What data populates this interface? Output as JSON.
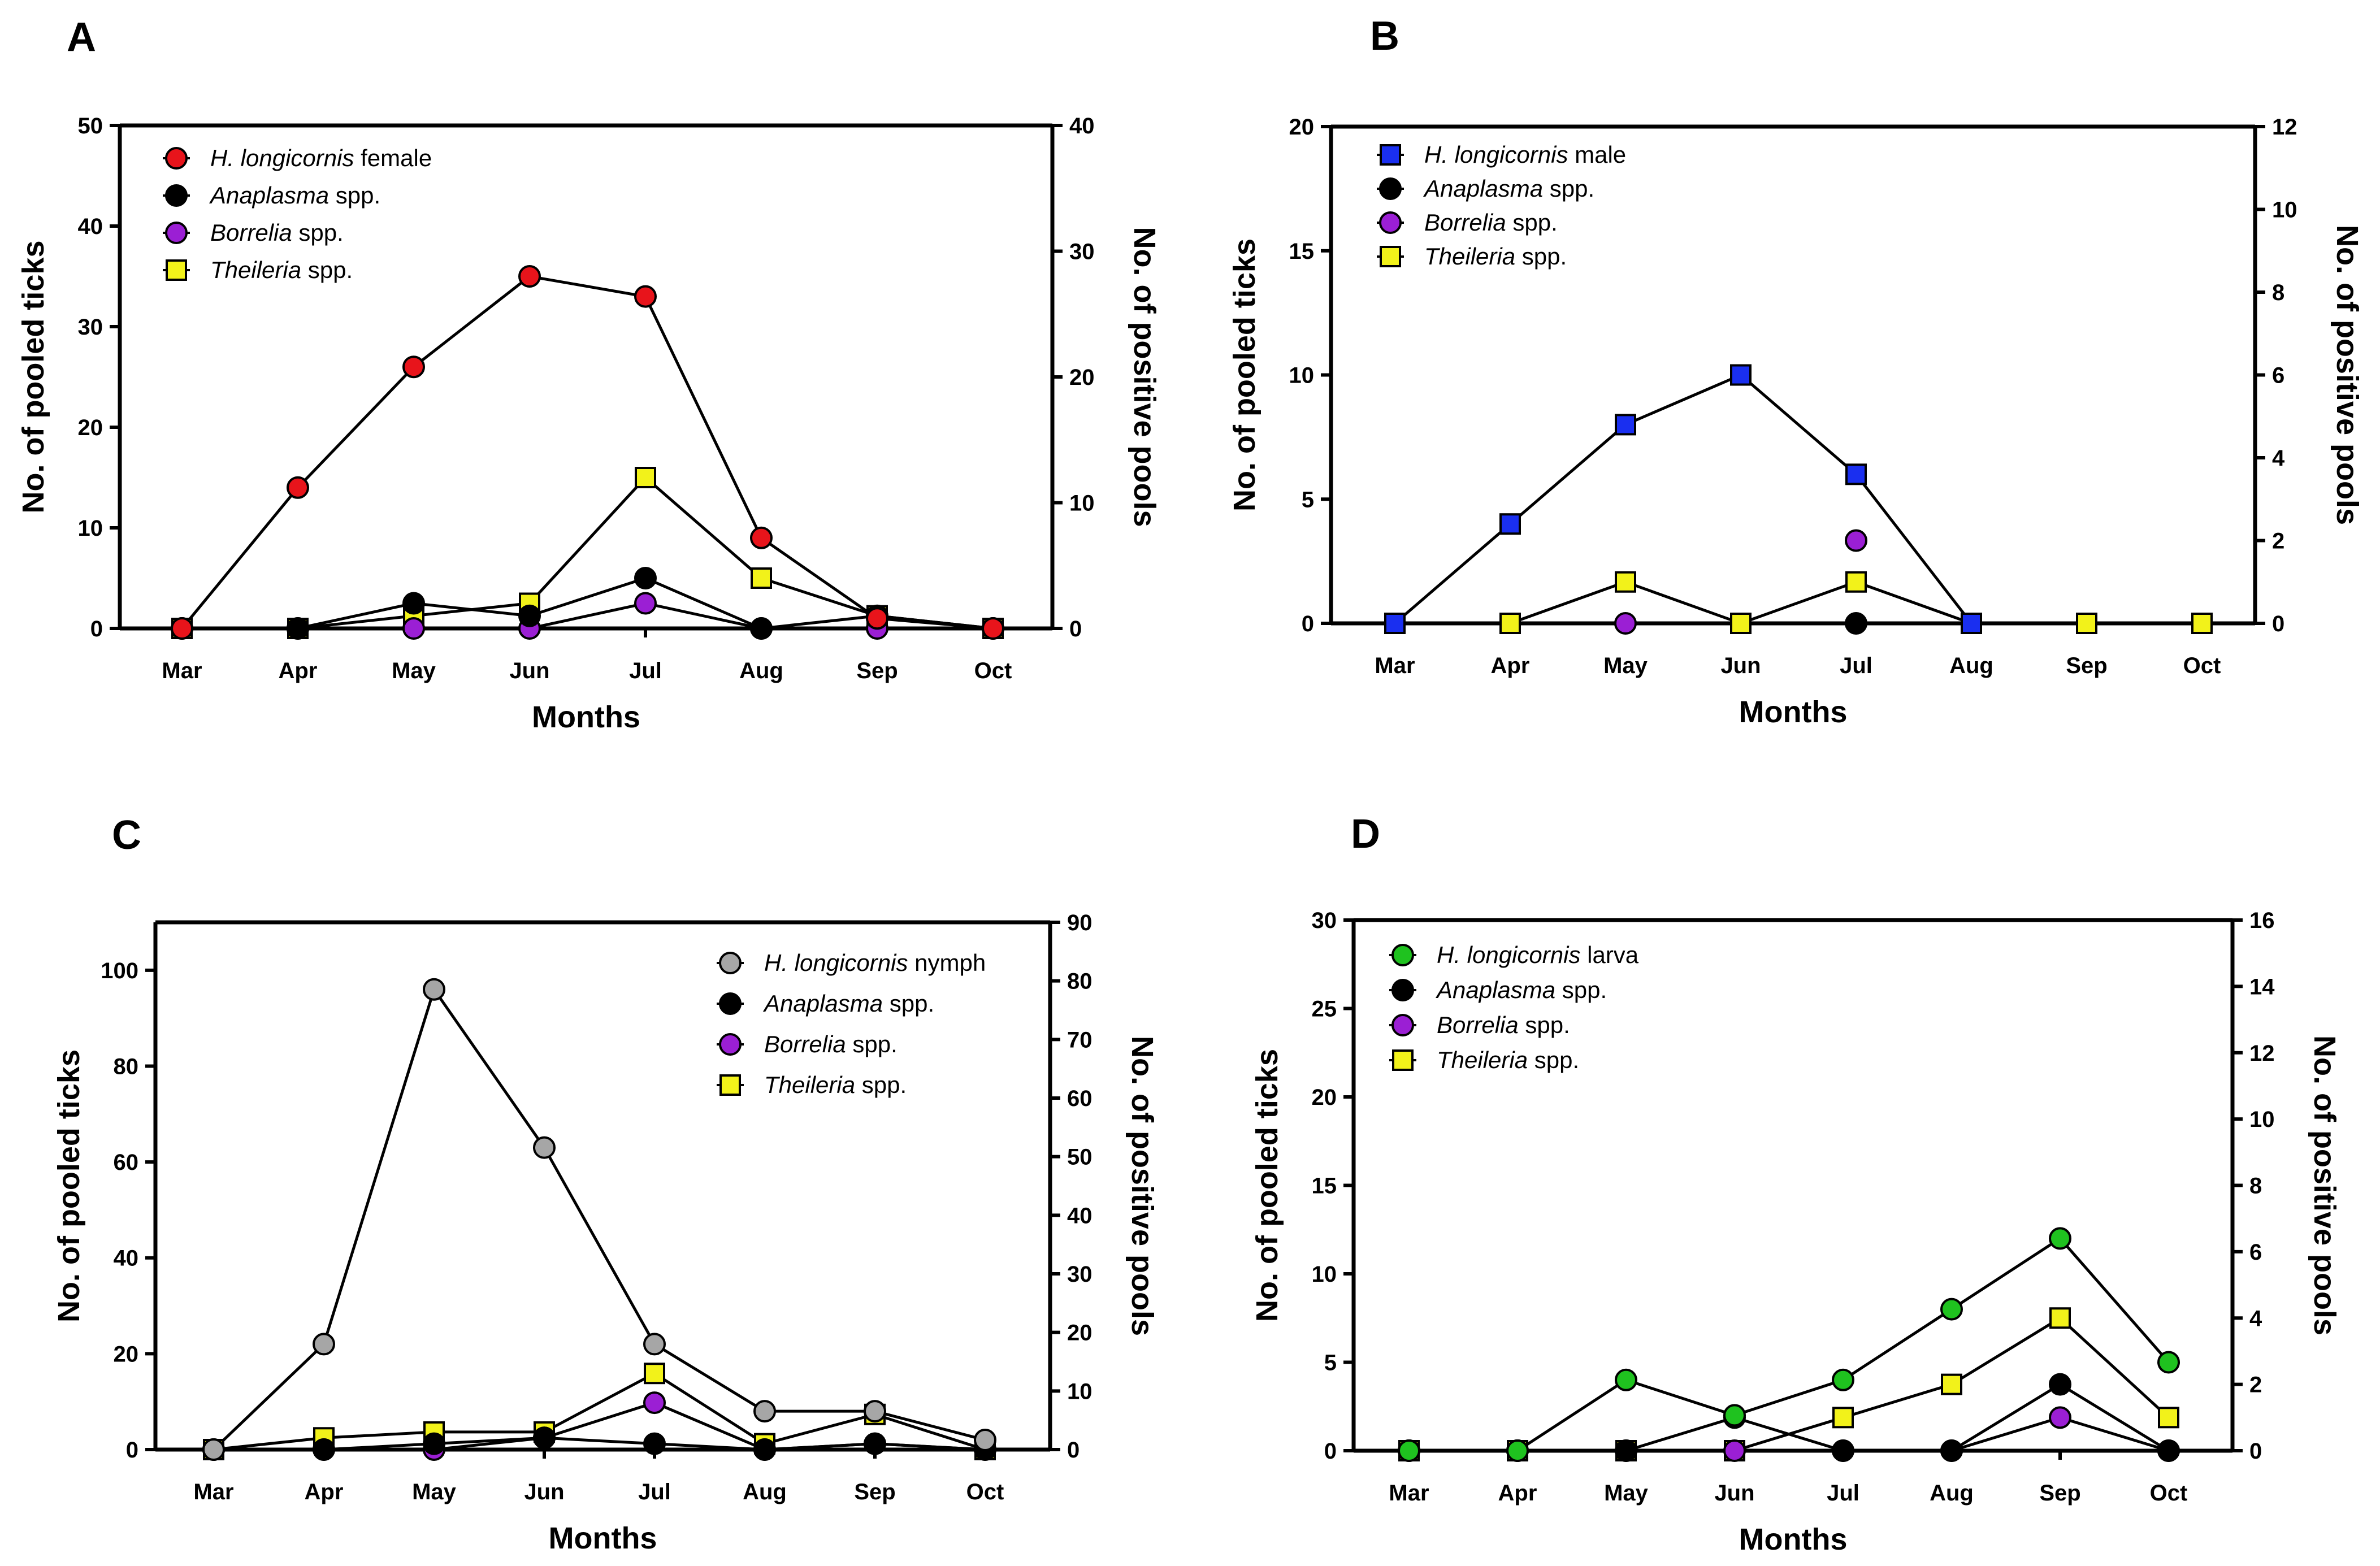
{
  "chart_data": [
    {
      "panel": "A",
      "type": "line",
      "xlabel": "Months",
      "ylabel": "No. of pooled ticks",
      "ylabel_right": "No. of positive pools",
      "categories": [
        "Mar",
        "Apr",
        "May",
        "Jun",
        "Jul",
        "Aug",
        "Sep",
        "Oct"
      ],
      "ylim": [
        0,
        50
      ],
      "yticks": [
        0,
        10,
        20,
        30,
        40,
        50
      ],
      "ylim_right": [
        0,
        40
      ],
      "yticks_right": [
        0,
        10,
        20,
        30,
        40
      ],
      "legend_position": "top-left",
      "series": [
        {
          "name_italic": "H. longicornis",
          "name_rest": " female",
          "axis": "left",
          "marker": "circle",
          "color": "#e8141b",
          "values": [
            0,
            14,
            26,
            35,
            33,
            9,
            1,
            0
          ]
        },
        {
          "name_italic": "Anaplasma",
          "name_rest": " spp.",
          "axis": "right",
          "marker": "circle",
          "color": "#000000",
          "values": [
            0,
            0,
            2,
            1,
            4,
            0,
            1,
            0
          ]
        },
        {
          "name_italic": "Borrelia",
          "name_rest": " spp.",
          "axis": "right",
          "marker": "circle",
          "color": "#9b1fd4",
          "values": [
            0,
            0,
            0,
            0,
            2,
            0,
            0,
            0
          ]
        },
        {
          "name_italic": "Theileria",
          "name_rest": " spp.",
          "axis": "right",
          "marker": "square",
          "color": "#f2f21a",
          "values": [
            0,
            0,
            1,
            2,
            12,
            4,
            1,
            0
          ]
        }
      ]
    },
    {
      "panel": "B",
      "type": "line",
      "xlabel": "Months",
      "ylabel": "No. of pooled ticks",
      "ylabel_right": "No. of positive pools",
      "categories": [
        "Mar",
        "Apr",
        "May",
        "Jun",
        "Jul",
        "Aug",
        "Sep",
        "Oct"
      ],
      "ylim": [
        0,
        20
      ],
      "yticks": [
        0,
        5,
        10,
        15,
        20
      ],
      "ylim_right": [
        0,
        12
      ],
      "yticks_right": [
        0,
        2,
        4,
        6,
        8,
        10,
        12
      ],
      "legend_position": "top-left",
      "series": [
        {
          "name_italic": "H. longicornis",
          "name_rest": " male",
          "axis": "left",
          "marker": "square",
          "color": "#1a2ff0",
          "values": [
            0,
            4,
            8,
            10,
            6,
            0,
            null,
            null
          ]
        },
        {
          "name_italic": "Anaplasma",
          "name_rest": " spp.",
          "axis": "right",
          "marker": "circle",
          "color": "#000000",
          "values": [
            null,
            null,
            null,
            null,
            0,
            null,
            null,
            null
          ]
        },
        {
          "name_italic": "Borrelia",
          "name_rest": " spp.",
          "axis": "right",
          "marker": "circle",
          "color": "#9b1fd4",
          "values": [
            null,
            null,
            0,
            null,
            2,
            null,
            null,
            null
          ]
        },
        {
          "name_italic": "Theileria",
          "name_rest": " spp.",
          "axis": "right",
          "marker": "square",
          "color": "#f2f21a",
          "values": [
            0,
            0,
            1,
            0,
            1,
            0,
            0,
            0
          ]
        }
      ]
    },
    {
      "panel": "C",
      "type": "line",
      "xlabel": "Months",
      "ylabel": "No. of pooled ticks",
      "ylabel_right": "No. of positive pools",
      "categories": [
        "Mar",
        "Apr",
        "May",
        "Jun",
        "Jul",
        "Aug",
        "Sep",
        "Oct"
      ],
      "ylim": [
        0,
        110
      ],
      "yticks": [
        0,
        20,
        40,
        60,
        80,
        100
      ],
      "ylim_right": [
        0,
        90
      ],
      "yticks_right": [
        0,
        10,
        20,
        30,
        40,
        50,
        60,
        70,
        80,
        90
      ],
      "legend_position": "top-right",
      "series": [
        {
          "name_italic": "H. longicornis",
          "name_rest": " nymph",
          "axis": "left",
          "marker": "circle",
          "color": "#a6a6a6",
          "values": [
            0,
            22,
            96,
            63,
            22,
            8,
            8,
            2
          ]
        },
        {
          "name_italic": "Anaplasma",
          "name_rest": " spp.",
          "axis": "right",
          "marker": "circle",
          "color": "#000000",
          "values": [
            0,
            0,
            1,
            2,
            1,
            0,
            1,
            0
          ]
        },
        {
          "name_italic": "Borrelia",
          "name_rest": " spp.",
          "axis": "right",
          "marker": "circle",
          "color": "#9b1fd4",
          "values": [
            0,
            0,
            0,
            2,
            8,
            0,
            1,
            0
          ]
        },
        {
          "name_italic": "Theileria",
          "name_rest": " spp.",
          "axis": "right",
          "marker": "square",
          "color": "#f2f21a",
          "values": [
            0,
            2,
            3,
            3,
            13,
            1,
            6,
            0
          ]
        }
      ]
    },
    {
      "panel": "D",
      "type": "line",
      "xlabel": "Months",
      "ylabel": "No. of pooled ticks",
      "ylabel_right": "No. of positive pools",
      "categories": [
        "Mar",
        "Apr",
        "May",
        "Jun",
        "Jul",
        "Aug",
        "Sep",
        "Oct"
      ],
      "ylim": [
        0,
        30
      ],
      "yticks": [
        0,
        5,
        10,
        15,
        20,
        25,
        30
      ],
      "ylim_right": [
        0,
        16
      ],
      "yticks_right": [
        0,
        2,
        4,
        6,
        8,
        10,
        12,
        14,
        16
      ],
      "legend_position": "top-left",
      "series": [
        {
          "name_italic": "H. longicornis",
          "name_rest": " larva",
          "axis": "left",
          "marker": "circle",
          "color": "#1fc21f",
          "values": [
            0,
            0,
            4,
            2,
            4,
            8,
            12,
            5
          ]
        },
        {
          "name_italic": "Anaplasma",
          "name_rest": " spp.",
          "axis": "right",
          "marker": "circle",
          "color": "#000000",
          "values": [
            0,
            0,
            0,
            1,
            0,
            0,
            2,
            0
          ]
        },
        {
          "name_italic": "Borrelia",
          "name_rest": " spp.",
          "axis": "right",
          "marker": "circle",
          "color": "#9b1fd4",
          "values": [
            0,
            0,
            0,
            0,
            0,
            0,
            1,
            0
          ]
        },
        {
          "name_italic": "Theileria",
          "name_rest": " spp.",
          "axis": "right",
          "marker": "square",
          "color": "#f2f21a",
          "values": [
            0,
            0,
            0,
            0,
            1,
            2,
            4,
            1
          ]
        }
      ]
    }
  ]
}
